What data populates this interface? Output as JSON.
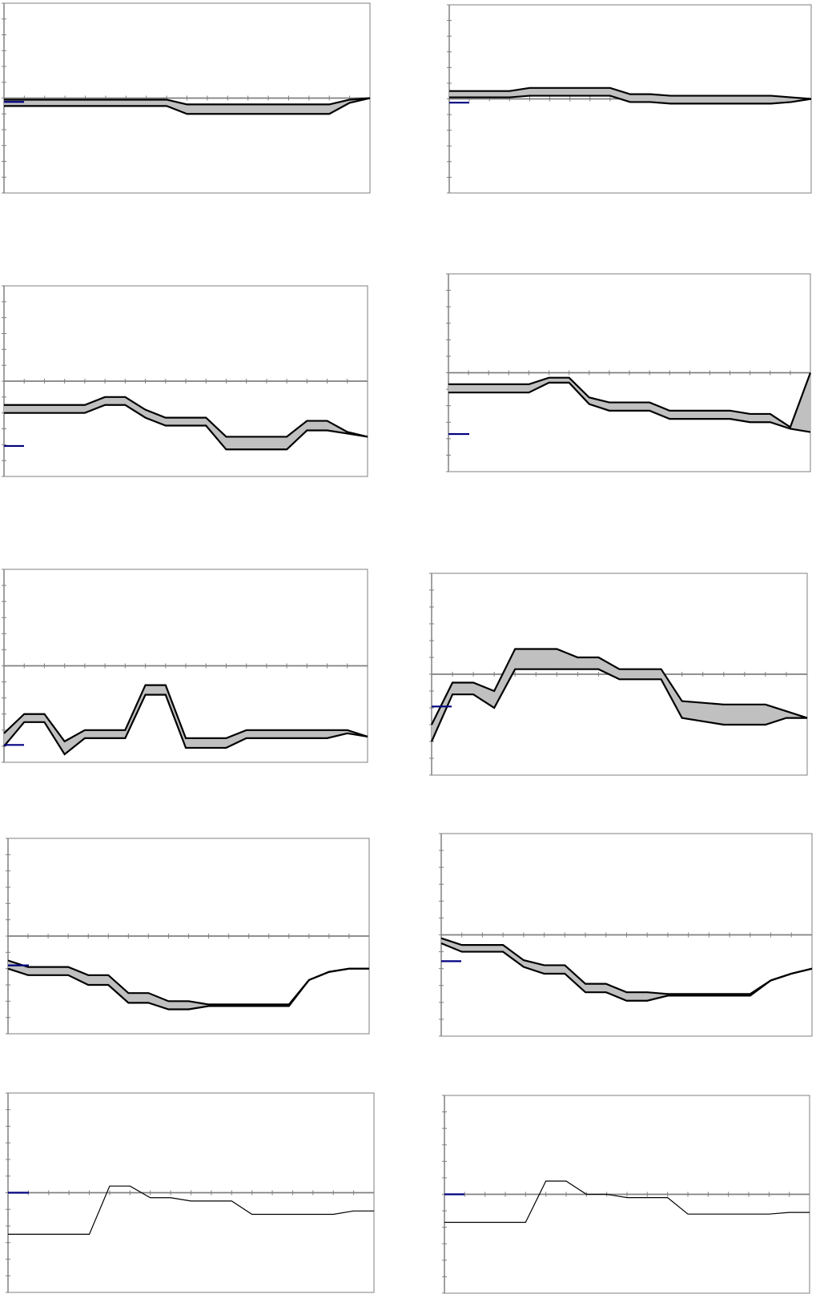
{
  "colors": {
    "frame": "#7f7f7f",
    "axis": "#808080",
    "band_fill": "#c0c0c0",
    "band_edge": "#000000",
    "legend": "#000080",
    "line": "#000000"
  },
  "chart_data": [
    {
      "type": "area",
      "style": "band",
      "ylim": [
        -6,
        6
      ],
      "x": [
        0,
        1,
        2,
        3,
        4,
        5,
        6,
        7,
        8,
        9,
        10,
        11,
        12,
        13,
        14,
        15,
        16,
        17,
        18
      ],
      "series": [
        {
          "upper": [
            -0.1,
            -0.1,
            -0.1,
            -0.1,
            -0.1,
            -0.1,
            -0.1,
            -0.1,
            -0.1,
            -0.4,
            -0.4,
            -0.4,
            -0.4,
            -0.4,
            -0.4,
            -0.4,
            -0.4,
            -0.1,
            0
          ],
          "lower": [
            -0.5,
            -0.5,
            -0.5,
            -0.5,
            -0.5,
            -0.5,
            -0.5,
            -0.5,
            -0.5,
            -1.0,
            -1.0,
            -1.0,
            -1.0,
            -1.0,
            -1.0,
            -1.0,
            -1.0,
            -0.3,
            0
          ]
        }
      ]
    },
    {
      "type": "area",
      "style": "band",
      "ylim": [
        -6,
        6
      ],
      "x": [
        0,
        1,
        2,
        3,
        4,
        5,
        6,
        7,
        8,
        9,
        10,
        11,
        12,
        13,
        14,
        15,
        16,
        17,
        18
      ],
      "series": [
        {
          "upper": [
            0.5,
            0.5,
            0.5,
            0.5,
            0.7,
            0.7,
            0.7,
            0.7,
            0.7,
            0.3,
            0.3,
            0.2,
            0.2,
            0.2,
            0.2,
            0.2,
            0.2,
            0.1,
            0
          ],
          "lower": [
            0.1,
            0.1,
            0.1,
            0.1,
            0.2,
            0.2,
            0.2,
            0.2,
            0.2,
            -0.2,
            -0.2,
            -0.3,
            -0.3,
            -0.3,
            -0.3,
            -0.3,
            -0.3,
            -0.2,
            0
          ]
        }
      ]
    },
    {
      "type": "area",
      "style": "band",
      "ylim": [
        -6,
        6
      ],
      "x": [
        0,
        1,
        2,
        3,
        4,
        5,
        6,
        7,
        8,
        9,
        10,
        11,
        12,
        13,
        14,
        15,
        16,
        17,
        18
      ],
      "series": [
        {
          "upper": [
            -1.5,
            -1.5,
            -1.5,
            -1.5,
            -1.5,
            -1.0,
            -1.0,
            -1.8,
            -2.3,
            -2.3,
            -2.3,
            -3.5,
            -3.5,
            -3.5,
            -3.5,
            -2.5,
            -2.5,
            -3.2,
            -3.5
          ],
          "lower": [
            -2.0,
            -2.0,
            -2.0,
            -2.0,
            -2.0,
            -1.5,
            -1.5,
            -2.3,
            -2.8,
            -2.8,
            -2.8,
            -4.3,
            -4.3,
            -4.3,
            -4.3,
            -3.1,
            -3.1,
            -3.3,
            -3.5
          ]
        }
      ]
    },
    {
      "type": "area",
      "style": "band",
      "ylim": [
        -6,
        6
      ],
      "x": [
        0,
        1,
        2,
        3,
        4,
        5,
        6,
        7,
        8,
        9,
        10,
        11,
        12,
        13,
        14,
        15,
        16,
        17,
        18
      ],
      "series": [
        {
          "upper": [
            -0.7,
            -0.7,
            -0.7,
            -0.7,
            -0.7,
            -0.3,
            -0.3,
            -1.5,
            -1.8,
            -1.8,
            -1.8,
            -2.3,
            -2.3,
            -2.3,
            -2.3,
            -2.5,
            -2.5,
            -3.3,
            0
          ],
          "lower": [
            -1.2,
            -1.2,
            -1.2,
            -1.2,
            -1.2,
            -0.6,
            -0.6,
            -1.9,
            -2.3,
            -2.3,
            -2.3,
            -2.8,
            -2.8,
            -2.8,
            -2.8,
            -3.0,
            -3.0,
            -3.4,
            -3.6
          ]
        }
      ]
    },
    {
      "type": "area",
      "style": "band",
      "ylim": [
        -6,
        6
      ],
      "x": [
        0,
        1,
        2,
        3,
        4,
        5,
        6,
        7,
        8,
        9,
        10,
        11,
        12,
        13,
        14,
        15,
        16,
        17,
        18
      ],
      "series": [
        {
          "upper": [
            -4.2,
            -3.0,
            -3.0,
            -4.7,
            -4.0,
            -4.0,
            -4.0,
            -1.2,
            -1.2,
            -4.5,
            -4.5,
            -4.5,
            -4.0,
            -4.0,
            -4.0,
            -4.0,
            -4.0,
            -4.0,
            -4.4
          ],
          "lower": [
            -5.0,
            -3.5,
            -3.5,
            -5.5,
            -4.5,
            -4.5,
            -4.5,
            -1.8,
            -1.8,
            -5.1,
            -5.1,
            -5.1,
            -4.5,
            -4.5,
            -4.5,
            -4.5,
            -4.5,
            -4.2,
            -4.4
          ]
        }
      ]
    },
    {
      "type": "area",
      "style": "band",
      "ylim": [
        -6,
        6
      ],
      "x": [
        0,
        1,
        2,
        3,
        4,
        5,
        6,
        7,
        8,
        9,
        10,
        11,
        12,
        13,
        14,
        15,
        16,
        17,
        18
      ],
      "series": [
        {
          "upper": [
            -3.0,
            -0.5,
            -0.5,
            -1.0,
            1.5,
            1.5,
            1.5,
            1.0,
            1.0,
            0.3,
            0.3,
            0.3,
            -1.6,
            -1.7,
            -1.8,
            -1.8,
            -1.8,
            -2.2,
            -2.6
          ],
          "lower": [
            -4.0,
            -1.2,
            -1.2,
            -2.0,
            0.3,
            0.3,
            0.3,
            0.3,
            0.3,
            -0.3,
            -0.3,
            -0.3,
            -2.6,
            -2.8,
            -3.0,
            -3.0,
            -3.0,
            -2.6,
            -2.6
          ]
        }
      ]
    },
    {
      "type": "area",
      "style": "band",
      "ylim": [
        -6,
        6
      ],
      "x": [
        0,
        1,
        2,
        3,
        4,
        5,
        6,
        7,
        8,
        9,
        10,
        11,
        12,
        13,
        14,
        15,
        16,
        17,
        18
      ],
      "series": [
        {
          "upper": [
            -1.5,
            -1.9,
            -1.9,
            -1.9,
            -2.4,
            -2.4,
            -3.5,
            -3.5,
            -4.0,
            -4.0,
            -4.2,
            -4.2,
            -4.2,
            -4.2,
            -4.2,
            -2.7,
            -2.2,
            -2.0,
            -2.0
          ],
          "lower": [
            -2.0,
            -2.4,
            -2.4,
            -2.4,
            -3.0,
            -3.0,
            -4.1,
            -4.1,
            -4.5,
            -4.5,
            -4.3,
            -4.3,
            -4.3,
            -4.3,
            -4.3,
            -2.7,
            -2.2,
            -2.0,
            -2.0
          ]
        }
      ]
    },
    {
      "type": "area",
      "style": "band",
      "ylim": [
        -6,
        6
      ],
      "x": [
        0,
        1,
        2,
        3,
        4,
        5,
        6,
        7,
        8,
        9,
        10,
        11,
        12,
        13,
        14,
        15,
        16,
        17,
        18
      ],
      "series": [
        {
          "upper": [
            -0.2,
            -0.6,
            -0.6,
            -0.6,
            -1.5,
            -1.8,
            -1.8,
            -2.9,
            -2.9,
            -3.4,
            -3.4,
            -3.5,
            -3.5,
            -3.5,
            -3.5,
            -3.5,
            -2.7,
            -2.3,
            -2.0
          ],
          "lower": [
            -0.5,
            -1.0,
            -1.0,
            -1.0,
            -1.9,
            -2.3,
            -2.3,
            -3.4,
            -3.4,
            -3.9,
            -3.9,
            -3.6,
            -3.6,
            -3.6,
            -3.6,
            -3.6,
            -2.7,
            -2.3,
            -2.0
          ]
        }
      ]
    },
    {
      "type": "line",
      "ylim": [
        -6,
        6
      ],
      "x": [
        0,
        1,
        2,
        3,
        4,
        5,
        6,
        7,
        8,
        9,
        10,
        11,
        12,
        13,
        14,
        15,
        16,
        17,
        18
      ],
      "series": [
        {
          "values": [
            -2.5,
            -2.5,
            -2.5,
            -2.5,
            -2.5,
            0.4,
            0.4,
            -0.3,
            -0.3,
            -0.5,
            -0.5,
            -0.5,
            -1.3,
            -1.3,
            -1.3,
            -1.3,
            -1.3,
            -1.1,
            -1.1
          ]
        }
      ]
    },
    {
      "type": "line",
      "ylim": [
        -6,
        6
      ],
      "x": [
        0,
        1,
        2,
        3,
        4,
        5,
        6,
        7,
        8,
        9,
        10,
        11,
        12,
        13,
        14,
        15,
        16,
        17,
        18
      ],
      "series": [
        {
          "values": [
            -1.7,
            -1.7,
            -1.7,
            -1.7,
            -1.7,
            0.8,
            0.8,
            0,
            0,
            -0.2,
            -0.2,
            -0.2,
            -1.2,
            -1.2,
            -1.2,
            -1.2,
            -1.2,
            -1.1,
            -1.1
          ]
        }
      ]
    }
  ]
}
